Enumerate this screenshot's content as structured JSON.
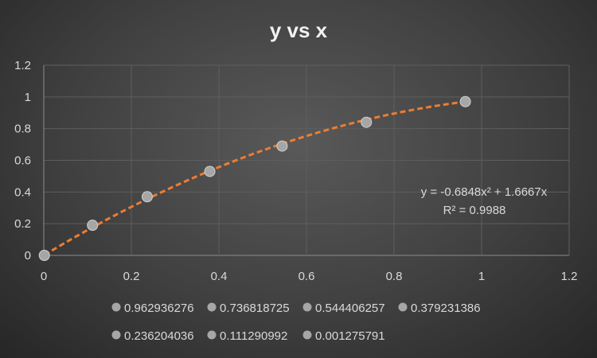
{
  "chart_data": {
    "type": "scatter",
    "title": "y vs x",
    "xlabel": "",
    "ylabel": "",
    "xlim": [
      0,
      1.2
    ],
    "ylim": [
      0,
      1.2
    ],
    "x_ticks": [
      "0",
      "0.2",
      "0.4",
      "0.6",
      "0.8",
      "1",
      "1.2"
    ],
    "y_ticks": [
      "0",
      "0.2",
      "0.4",
      "0.6",
      "0.8",
      "1",
      "1.2"
    ],
    "grid": true,
    "legend_position": "bottom",
    "series": [
      {
        "name": "0.962936276",
        "x": 0.962936276,
        "y": 0.97
      },
      {
        "name": "0.736818725",
        "x": 0.736818725,
        "y": 0.84
      },
      {
        "name": "0.544406257",
        "x": 0.544406257,
        "y": 0.69
      },
      {
        "name": "0.379231386",
        "x": 0.379231386,
        "y": 0.53
      },
      {
        "name": "0.236204036",
        "x": 0.236204036,
        "y": 0.37
      },
      {
        "name": "0.111290992",
        "x": 0.111290992,
        "y": 0.19
      },
      {
        "name": "0.001275791",
        "x": 0.001275791,
        "y": 0.0
      }
    ],
    "trendline": {
      "type": "polynomial",
      "order": 2,
      "a": -0.6848,
      "b": 1.6667,
      "c": 0,
      "equation": "y = -0.6848x² + 1.6667x",
      "r2": "R² = 0.9988",
      "color": "#ed7d31"
    },
    "marker_color": "#a6a6a6"
  }
}
